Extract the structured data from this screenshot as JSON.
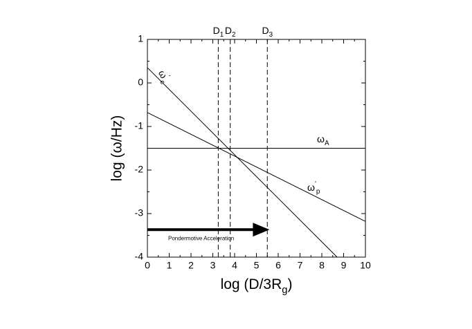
{
  "chart_data": {
    "type": "line",
    "xlabel": {
      "text": "log (D/3R",
      "sub": "g",
      "tail": ")"
    },
    "ylabel": "log (ω/Hz)",
    "xlim": [
      0,
      10
    ],
    "ylim": [
      -4,
      1
    ],
    "xticks": [
      0,
      1,
      2,
      3,
      4,
      5,
      6,
      7,
      8,
      9,
      10
    ],
    "yticks": [
      -4,
      -3,
      -2,
      -1,
      0,
      1
    ],
    "series": [
      {
        "name": {
          "base": "ω",
          "sup": "'",
          "sub": "c"
        },
        "color": "#000000",
        "x": [
          0,
          8.7
        ],
        "values": [
          0.35,
          -4
        ]
      },
      {
        "name": {
          "base": "ω",
          "sup": "'",
          "sub": "p"
        },
        "color": "#000000",
        "x": [
          0,
          10
        ],
        "values": [
          -0.68,
          -3.18
        ]
      },
      {
        "name": {
          "base": "ω",
          "sub": "A"
        },
        "color": "#000000",
        "x": [
          0,
          10
        ],
        "values": [
          -1.5,
          -1.5
        ]
      }
    ],
    "vlines": [
      {
        "label": {
          "base": "D",
          "sub": "1"
        },
        "x": 3.25
      },
      {
        "label": {
          "base": "D",
          "sub": "2"
        },
        "x": 3.8
      },
      {
        "label": {
          "base": "D",
          "sub": "3"
        },
        "x": 5.5
      }
    ],
    "arrow": {
      "label": "Pondermotive Acceleration",
      "x": [
        0,
        5.6
      ],
      "y": -3.37
    }
  }
}
